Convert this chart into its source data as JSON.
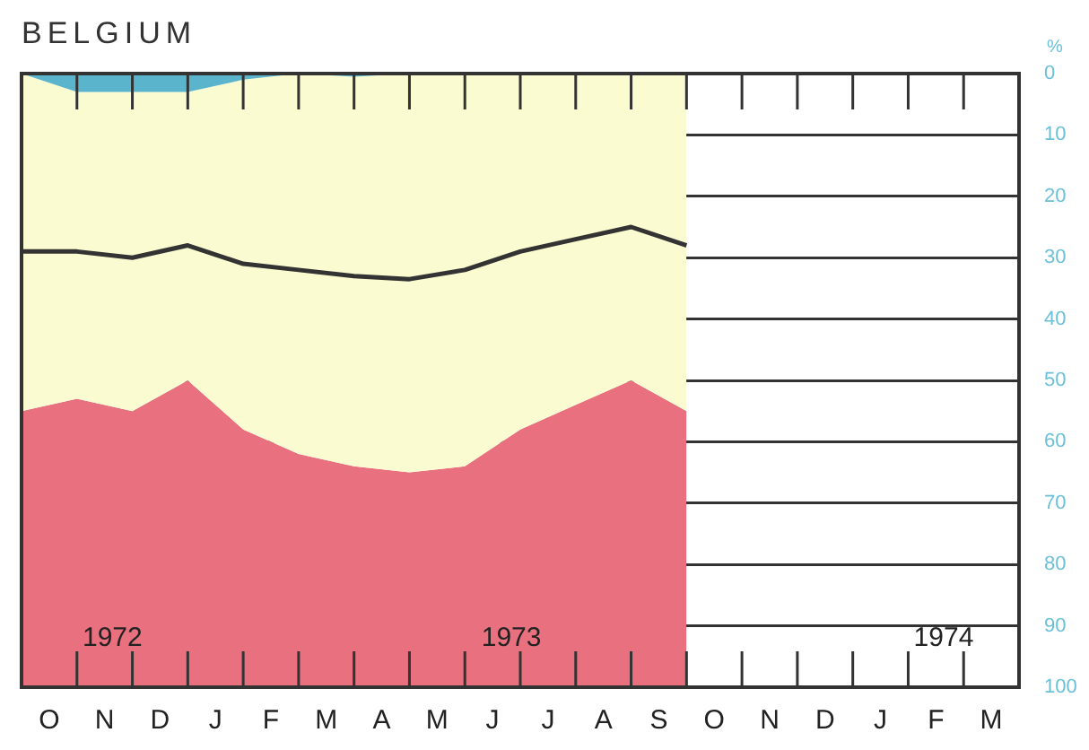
{
  "chart_data": {
    "type": "area",
    "title": "BELGIUM",
    "ylabel": "%",
    "stacked": true,
    "categories": [
      null,
      "O",
      null,
      "N",
      null,
      "D",
      null,
      "J",
      null,
      "F",
      null,
      "M",
      null,
      "A",
      null,
      "M",
      null,
      "J",
      null,
      "J",
      null,
      "A",
      null,
      "S",
      null,
      "O",
      null,
      "N",
      null,
      "D",
      null,
      "J",
      null,
      "F",
      null,
      "M",
      null
    ],
    "ylim": [
      100,
      0
    ],
    "yticks": [
      0,
      10,
      20,
      30,
      40,
      50,
      60,
      70,
      80,
      90,
      100
    ],
    "grid": "y",
    "legend": false,
    "series": [
      {
        "color": "#5ab4cc",
        "values": [
          0,
          null,
          3,
          null,
          3,
          null,
          3,
          null,
          1,
          null,
          0,
          null,
          0.5,
          null,
          0,
          null,
          0,
          null,
          0,
          null,
          0,
          null,
          0,
          null,
          0,
          null,
          null,
          null,
          null,
          null,
          null,
          null,
          null,
          null,
          null,
          null,
          null
        ]
      },
      {
        "color": "#fbfbd2",
        "values": [
          55,
          null,
          50,
          null,
          52,
          null,
          47,
          null,
          57,
          null,
          62,
          null,
          63.5,
          null,
          65,
          null,
          64,
          null,
          58,
          null,
          54,
          null,
          50,
          null,
          55,
          null,
          null,
          null,
          null,
          null,
          null,
          null,
          null,
          null,
          null,
          null,
          null
        ]
      },
      {
        "color": "#e8707f",
        "values": [
          45,
          null,
          47,
          null,
          45,
          null,
          50,
          null,
          42,
          null,
          38,
          null,
          36,
          null,
          35,
          null,
          36,
          null,
          42,
          null,
          46,
          null,
          50,
          null,
          45,
          null,
          null,
          null,
          null,
          null,
          null,
          null,
          null,
          null,
          null,
          null,
          null
        ]
      },
      {
        "type": "line",
        "color": "#333333",
        "values": [
          29,
          null,
          29,
          null,
          30,
          null,
          28,
          null,
          31,
          null,
          32,
          null,
          33,
          null,
          33.5,
          null,
          32,
          null,
          29,
          null,
          27,
          null,
          25,
          null,
          28,
          null,
          null,
          null,
          null,
          null,
          null,
          null,
          null,
          null,
          null,
          null,
          null
        ]
      }
    ],
    "annotations": [
      "1972",
      "1973",
      "1974"
    ]
  }
}
